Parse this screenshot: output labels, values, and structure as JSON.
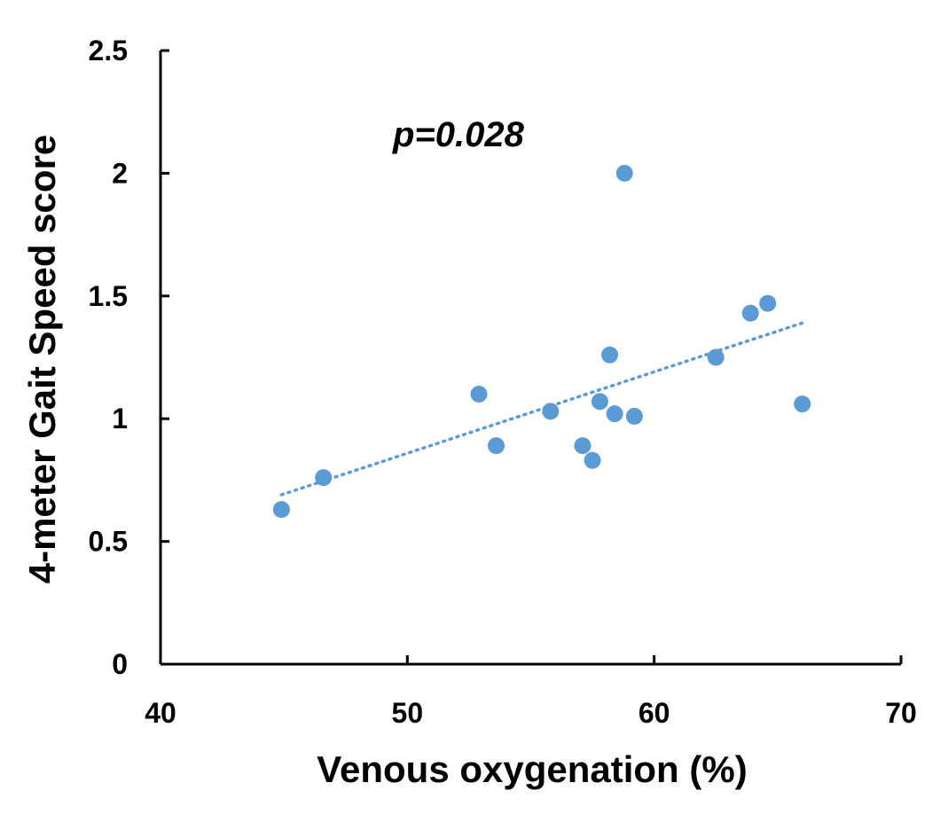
{
  "chart_data": {
    "type": "scatter",
    "xlabel": "Venous oxygenation (%)",
    "ylabel": "4-meter Gait Speed score",
    "annotation": "p=0.028",
    "xlim": [
      40,
      70
    ],
    "ylim": [
      0,
      2.5
    ],
    "x_ticks": [
      "40",
      "50",
      "60",
      "70"
    ],
    "y_ticks": [
      "0",
      "0.5",
      "1",
      "1.5",
      "2",
      "2.5"
    ],
    "x_tick_values": [
      40,
      50,
      60,
      70
    ],
    "y_tick_values": [
      0,
      0.5,
      1,
      1.5,
      2,
      2.5
    ],
    "grid": false,
    "marker_color": "#5b9bd5",
    "trendline": {
      "style": "dotted",
      "x": [
        44.9,
        66.0
      ],
      "y": [
        0.69,
        1.39
      ]
    },
    "points": [
      {
        "x": 44.9,
        "y": 0.63
      },
      {
        "x": 46.6,
        "y": 0.76
      },
      {
        "x": 52.9,
        "y": 1.1
      },
      {
        "x": 53.6,
        "y": 0.89
      },
      {
        "x": 55.8,
        "y": 1.03
      },
      {
        "x": 57.1,
        "y": 0.89
      },
      {
        "x": 57.5,
        "y": 0.83
      },
      {
        "x": 57.8,
        "y": 1.07
      },
      {
        "x": 58.2,
        "y": 1.26
      },
      {
        "x": 58.4,
        "y": 1.02
      },
      {
        "x": 58.8,
        "y": 2.0
      },
      {
        "x": 59.2,
        "y": 1.01
      },
      {
        "x": 62.5,
        "y": 1.25
      },
      {
        "x": 63.9,
        "y": 1.43
      },
      {
        "x": 64.6,
        "y": 1.47
      },
      {
        "x": 66.0,
        "y": 1.06
      }
    ]
  }
}
